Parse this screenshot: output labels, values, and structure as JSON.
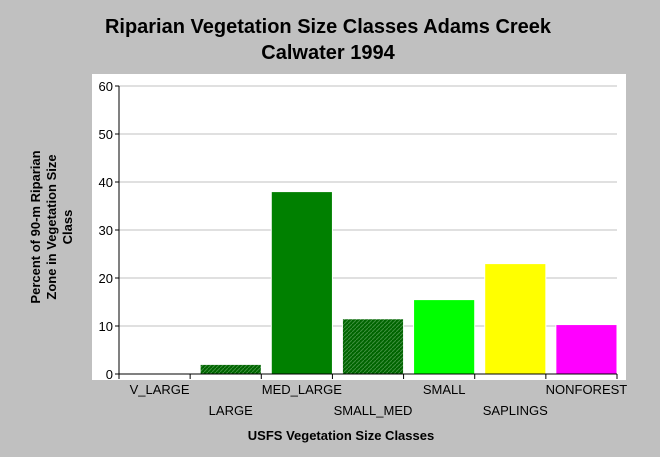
{
  "chart_data": {
    "type": "bar",
    "title_lines": [
      "Riparian Vegetation Size Classes Adams Creek",
      "Calwater 1994"
    ],
    "xlabel": "USFS Vegetation Size Classes",
    "ylabel_lines": [
      "Percent of 90-m Riparian",
      "Zone in Vegetation Size",
      "Class"
    ],
    "categories": [
      "V_LARGE",
      "LARGE",
      "MED_LARGE",
      "SMALL_MED",
      "SMALL",
      "SAPLINGS",
      "NONFOREST"
    ],
    "values": [
      0,
      2,
      38,
      11.5,
      15.5,
      23,
      10.3
    ],
    "colors": [
      "#006400",
      "#2e6b2e",
      "#008000",
      "#2e7d2e",
      "#00ff00",
      "#ffff00",
      "#ff00ff"
    ],
    "hatched": [
      false,
      true,
      false,
      true,
      false,
      false,
      false
    ],
    "ylim": [
      0,
      60
    ],
    "yticks": [
      0,
      10,
      20,
      30,
      40,
      50,
      60
    ],
    "grid": true,
    "legend": "none"
  }
}
